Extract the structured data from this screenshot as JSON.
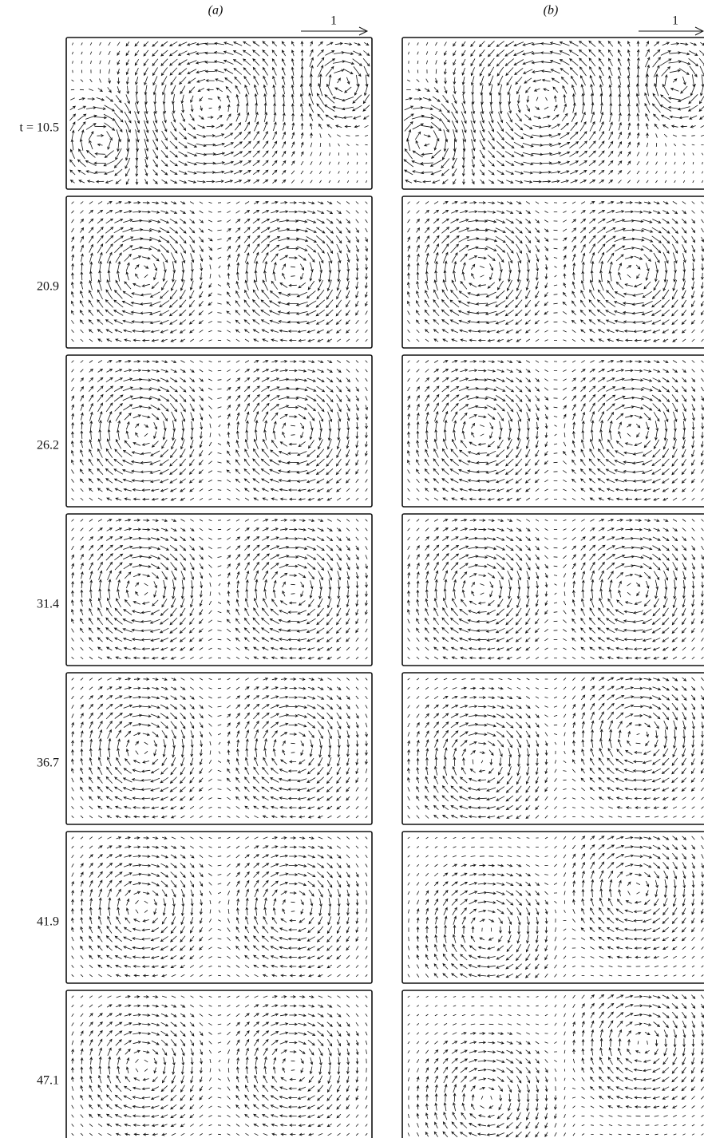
{
  "columns": [
    {
      "label": "(a)",
      "scale_label": "1"
    },
    {
      "label": "(b)",
      "scale_label": "1"
    }
  ],
  "rows": [
    {
      "label": "t = 10.5"
    },
    {
      "label": "20.9"
    },
    {
      "label": "26.2"
    },
    {
      "label": "31.4"
    },
    {
      "label": "36.7"
    },
    {
      "label": "41.9"
    },
    {
      "label": "47.1"
    }
  ]
}
